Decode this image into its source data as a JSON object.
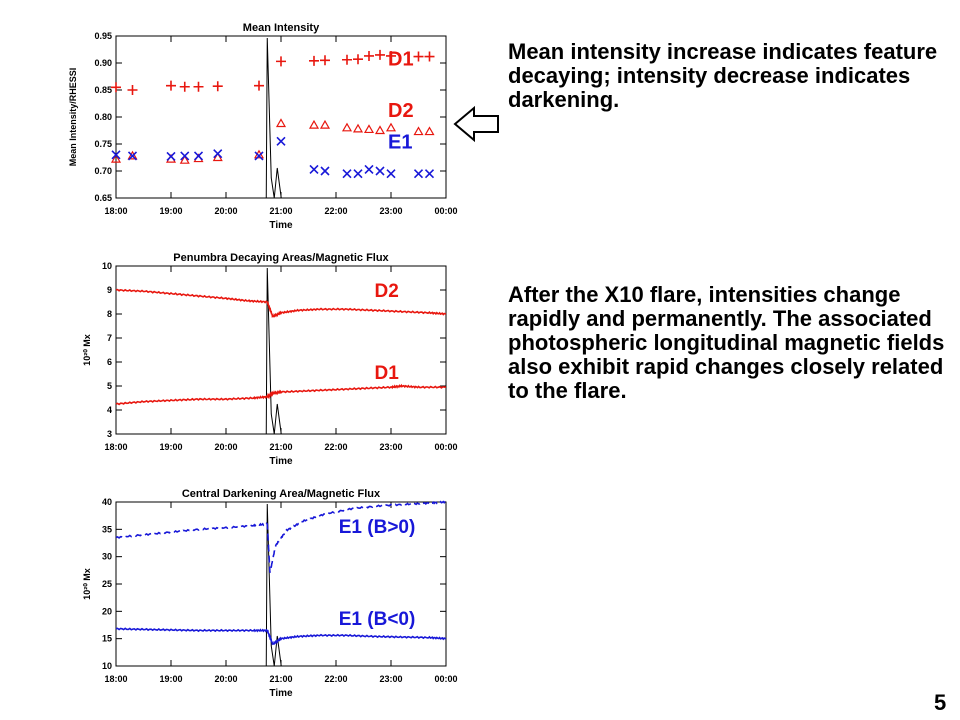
{
  "slide": {
    "paragraph1": "Mean intensity increase indicates feature decaying; intensity decrease indicates darkening.",
    "paragraph2": "After the X10 flare, intensities change rapidly and permanently. The associated photospheric longitudinal magnetic fields also exhibit rapid changes closely related to the flare.",
    "page_number": "5"
  },
  "colors": {
    "red": "#e8170f",
    "blue": "#1818d8",
    "black": "#000000"
  },
  "arrow_icon": "left-arrow-icon",
  "chart_data": [
    {
      "type": "scatter",
      "title": "Mean Intensity",
      "xlabel": "Time",
      "ylabel": "Mean Intensity/RHESSI",
      "x_ticks": [
        "18:00",
        "19:00",
        "20:00",
        "21:00",
        "22:00",
        "23:00",
        "00:00"
      ],
      "xlim": [
        18.0,
        24.0
      ],
      "ylim": [
        0.65,
        0.95
      ],
      "y_ticks": [
        "0.65",
        "0.70",
        "0.75",
        "0.80",
        "0.85",
        "0.90",
        "0.95"
      ],
      "grid": false,
      "series": [
        {
          "name": "D1",
          "marker": "plus",
          "color": "#e8170f",
          "x": [
            18.0,
            18.3,
            19.0,
            19.25,
            19.5,
            19.85,
            20.6,
            21.0,
            21.6,
            21.8,
            22.2,
            22.4,
            22.6,
            22.8,
            23.0,
            23.5,
            23.7
          ],
          "y": [
            0.855,
            0.85,
            0.858,
            0.856,
            0.856,
            0.857,
            0.858,
            0.903,
            0.904,
            0.905,
            0.906,
            0.907,
            0.913,
            0.915,
            0.913,
            0.912,
            0.912
          ]
        },
        {
          "name": "D2",
          "marker": "triangle",
          "color": "#e8170f",
          "x": [
            18.0,
            18.3,
            19.0,
            19.25,
            19.5,
            19.85,
            20.6,
            21.0,
            21.6,
            21.8,
            22.2,
            22.4,
            22.6,
            22.8,
            23.0,
            23.5,
            23.7
          ],
          "y": [
            0.722,
            0.728,
            0.722,
            0.72,
            0.723,
            0.725,
            0.73,
            0.788,
            0.785,
            0.785,
            0.78,
            0.778,
            0.777,
            0.775,
            0.78,
            0.773,
            0.773
          ]
        },
        {
          "name": "E1",
          "marker": "cross",
          "color": "#1818d8",
          "x": [
            18.0,
            18.3,
            19.0,
            19.25,
            19.5,
            19.85,
            20.6,
            21.0,
            21.6,
            21.8,
            22.2,
            22.4,
            22.6,
            22.8,
            23.0,
            23.5,
            23.7
          ],
          "y": [
            0.73,
            0.728,
            0.727,
            0.728,
            0.728,
            0.732,
            0.728,
            0.755,
            0.703,
            0.7,
            0.695,
            0.695,
            0.703,
            0.7,
            0.695,
            0.695,
            0.695
          ]
        }
      ]
    },
    {
      "type": "line",
      "title": "Penumbra Decaying Areas/Magnetic Flux",
      "xlabel": "Time",
      "ylabel": "10²⁰ Mx",
      "x_ticks": [
        "18:00",
        "19:00",
        "20:00",
        "21:00",
        "22:00",
        "23:00",
        "00:00"
      ],
      "xlim": [
        18.0,
        24.0
      ],
      "ylim": [
        3,
        10
      ],
      "y_ticks": [
        "3",
        "4",
        "5",
        "6",
        "7",
        "8",
        "9",
        "10"
      ],
      "grid": false,
      "series": [
        {
          "name": "D2",
          "color": "#e8170f",
          "x": [
            18.0,
            18.5,
            19.0,
            19.5,
            20.0,
            20.4,
            20.75,
            20.85,
            21.0,
            21.3,
            21.7,
            22.2,
            22.7,
            23.2,
            23.7,
            24.0
          ],
          "y": [
            9.0,
            8.95,
            8.85,
            8.75,
            8.65,
            8.55,
            8.5,
            7.9,
            8.05,
            8.15,
            8.2,
            8.2,
            8.15,
            8.1,
            8.05,
            8.0
          ]
        },
        {
          "name": "D1",
          "color": "#e8170f",
          "x": [
            18.0,
            18.5,
            19.0,
            19.5,
            20.0,
            20.5,
            20.75,
            20.85,
            21.0,
            21.5,
            22.0,
            22.5,
            23.0,
            23.2,
            23.5,
            24.0
          ],
          "y": [
            4.25,
            4.35,
            4.4,
            4.45,
            4.45,
            4.5,
            4.55,
            4.7,
            4.75,
            4.8,
            4.85,
            4.9,
            4.95,
            5.0,
            4.95,
            4.95
          ]
        }
      ]
    },
    {
      "type": "line",
      "title": "Central Darkening Area/Magnetic Flux",
      "xlabel": "Time",
      "ylabel": "10²⁰ Mx",
      "x_ticks": [
        "18:00",
        "19:00",
        "20:00",
        "21:00",
        "22:00",
        "23:00",
        "00:00"
      ],
      "xlim": [
        18.0,
        24.0
      ],
      "ylim": [
        10,
        40
      ],
      "y_ticks": [
        "10",
        "15",
        "20",
        "25",
        "30",
        "35",
        "40"
      ],
      "grid": false,
      "series": [
        {
          "name": "E1 (B>0)",
          "color": "#1818d8",
          "dash": true,
          "x": [
            18.0,
            18.5,
            19.0,
            19.5,
            20.0,
            20.5,
            20.75,
            20.8,
            20.9,
            21.1,
            21.4,
            21.8,
            22.3,
            22.8,
            23.3,
            23.7,
            24.0
          ],
          "y": [
            33.5,
            34.0,
            34.5,
            35.0,
            35.3,
            35.7,
            36.0,
            27.0,
            32.0,
            34.8,
            36.5,
            37.8,
            38.8,
            39.3,
            39.6,
            39.8,
            40.0
          ]
        },
        {
          "name": "E1 (B<0)",
          "color": "#1818d8",
          "dash": false,
          "x": [
            18.0,
            18.5,
            19.0,
            19.5,
            20.0,
            20.5,
            20.75,
            20.85,
            21.0,
            21.3,
            21.7,
            22.2,
            22.7,
            23.2,
            23.7,
            24.0
          ],
          "y": [
            16.8,
            16.7,
            16.6,
            16.5,
            16.5,
            16.5,
            16.5,
            14.0,
            15.0,
            15.4,
            15.6,
            15.6,
            15.4,
            15.3,
            15.2,
            15.0
          ]
        }
      ]
    }
  ]
}
